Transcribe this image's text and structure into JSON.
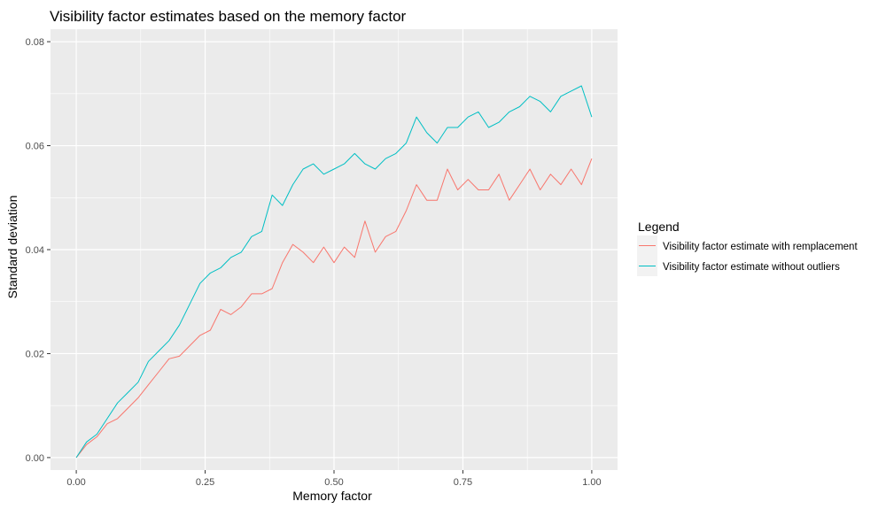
{
  "chart_data": {
    "type": "line",
    "title": "Visibility factor estimates based on the memory factor",
    "xlabel": "Memory factor",
    "ylabel": "Standard deviation",
    "xlim": [
      0,
      1
    ],
    "ylim": [
      0,
      0.08
    ],
    "x_ticks": [
      0,
      0.25,
      0.5,
      0.75,
      1
    ],
    "x_tick_labels": [
      "0.00",
      "0.25",
      "0.50",
      "0.75",
      "1.00"
    ],
    "y_ticks": [
      0,
      0.02,
      0.04,
      0.06,
      0.08
    ],
    "y_tick_labels": [
      "0.00",
      "0.02",
      "0.04",
      "0.06",
      "0.08"
    ],
    "grid": true,
    "legend": {
      "title": "Legend",
      "placement": "right"
    },
    "colors": {
      "panel_background": "#ebebeb",
      "grid": "#ffffff"
    },
    "series": [
      {
        "name": "Visibility factor estimate with remplacement",
        "color": "#f8766d",
        "x": [
          0.0,
          0.02,
          0.04,
          0.06,
          0.08,
          0.1,
          0.12,
          0.14,
          0.16,
          0.18,
          0.2,
          0.22,
          0.24,
          0.26,
          0.28,
          0.3,
          0.32,
          0.34,
          0.36,
          0.38,
          0.4,
          0.42,
          0.44,
          0.46,
          0.48,
          0.5,
          0.52,
          0.54,
          0.56,
          0.58,
          0.6,
          0.62,
          0.64,
          0.66,
          0.68,
          0.7,
          0.72,
          0.74,
          0.76,
          0.78,
          0.8,
          0.82,
          0.84,
          0.86,
          0.88,
          0.9,
          0.92,
          0.94,
          0.96,
          0.98,
          1.0
        ],
        "y": [
          0.0,
          0.0025,
          0.004,
          0.0065,
          0.0075,
          0.0095,
          0.0115,
          0.014,
          0.0165,
          0.019,
          0.0195,
          0.0215,
          0.0235,
          0.0245,
          0.0285,
          0.0275,
          0.029,
          0.0315,
          0.0315,
          0.0325,
          0.0375,
          0.041,
          0.0395,
          0.0375,
          0.0405,
          0.0375,
          0.0405,
          0.0385,
          0.0455,
          0.0395,
          0.0425,
          0.0435,
          0.0475,
          0.0525,
          0.0495,
          0.0495,
          0.0555,
          0.0515,
          0.0535,
          0.0515,
          0.0515,
          0.0545,
          0.0495,
          0.0525,
          0.0555,
          0.0515,
          0.0545,
          0.0525,
          0.0555,
          0.0525,
          0.0575
        ]
      },
      {
        "name": "Visibility factor estimate without outliers",
        "color": "#00bfc4",
        "x": [
          0.0,
          0.02,
          0.04,
          0.06,
          0.08,
          0.1,
          0.12,
          0.14,
          0.16,
          0.18,
          0.2,
          0.22,
          0.24,
          0.26,
          0.28,
          0.3,
          0.32,
          0.34,
          0.36,
          0.38,
          0.4,
          0.42,
          0.44,
          0.46,
          0.48,
          0.5,
          0.52,
          0.54,
          0.56,
          0.58,
          0.6,
          0.62,
          0.64,
          0.66,
          0.68,
          0.7,
          0.72,
          0.74,
          0.76,
          0.78,
          0.8,
          0.82,
          0.84,
          0.86,
          0.88,
          0.9,
          0.92,
          0.94,
          0.96,
          0.98,
          1.0
        ],
        "y": [
          0.0,
          0.003,
          0.0045,
          0.0075,
          0.0105,
          0.0125,
          0.0145,
          0.0185,
          0.0205,
          0.0225,
          0.0255,
          0.0295,
          0.0335,
          0.0355,
          0.0365,
          0.0385,
          0.0395,
          0.0425,
          0.0435,
          0.0505,
          0.0485,
          0.0525,
          0.0555,
          0.0565,
          0.0545,
          0.0555,
          0.0565,
          0.0585,
          0.0565,
          0.0555,
          0.0575,
          0.0585,
          0.0605,
          0.0655,
          0.0625,
          0.0605,
          0.0635,
          0.0635,
          0.0655,
          0.0665,
          0.0635,
          0.0645,
          0.0665,
          0.0675,
          0.0695,
          0.0685,
          0.0665,
          0.0695,
          0.0705,
          0.0715,
          0.0655
        ]
      }
    ]
  }
}
